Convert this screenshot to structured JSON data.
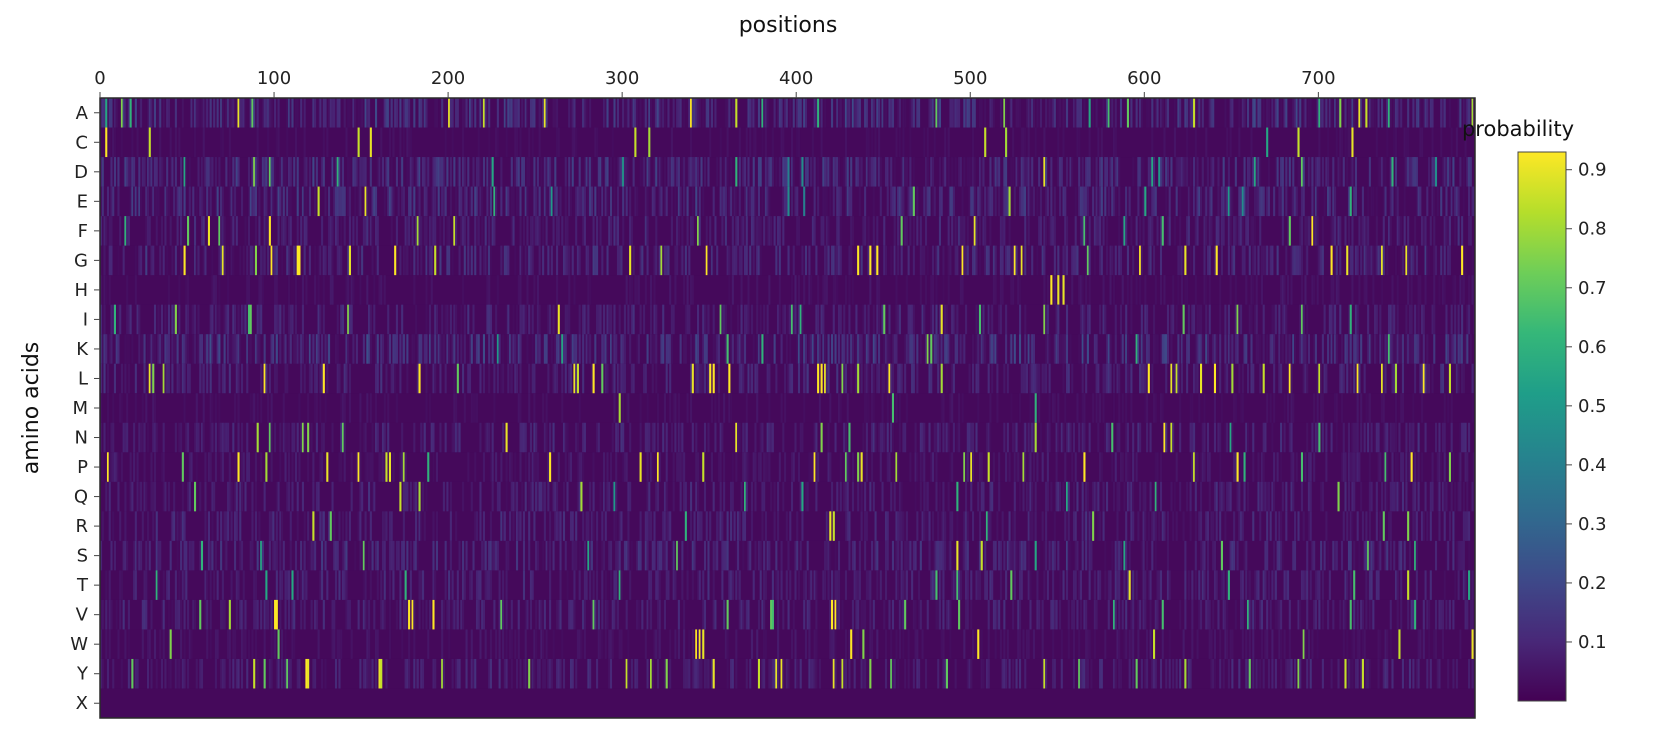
{
  "chart_data": {
    "type": "heatmap",
    "title": "",
    "xlabel": "positions",
    "ylabel": "amino acids",
    "x_axis_side": "top",
    "x_range": [
      0,
      790
    ],
    "x_ticks": [
      0,
      100,
      200,
      300,
      400,
      500,
      600,
      700
    ],
    "y_categories": [
      "A",
      "C",
      "D",
      "E",
      "F",
      "G",
      "H",
      "I",
      "K",
      "L",
      "M",
      "N",
      "P",
      "Q",
      "R",
      "S",
      "T",
      "V",
      "W",
      "Y",
      "X"
    ],
    "colorscale": "viridis",
    "colorbar": {
      "title": "probability",
      "range": [
        0,
        0.93
      ],
      "ticks": [
        0.1,
        0.2,
        0.3,
        0.4,
        0.5,
        0.6,
        0.7,
        0.8,
        0.9
      ]
    },
    "base_level": 0.02,
    "background_noise": 0.05,
    "row_noise_scale": {
      "A": 1.4,
      "C": 0.35,
      "D": 1.3,
      "E": 1.3,
      "F": 0.9,
      "G": 1.1,
      "H": 0.45,
      "I": 0.9,
      "K": 1.5,
      "L": 1.0,
      "M": 0.4,
      "N": 0.9,
      "P": 0.6,
      "Q": 0.9,
      "R": 0.9,
      "S": 1.1,
      "T": 0.9,
      "V": 0.9,
      "W": 0.5,
      "Y": 0.9,
      "X": 0
    },
    "high_values": {
      "A": [
        [
          3,
          0.55
        ],
        [
          12,
          0.75
        ],
        [
          17,
          0.6
        ],
        [
          79,
          0.9
        ],
        [
          87,
          0.7
        ],
        [
          200,
          0.9
        ],
        [
          220,
          0.85
        ],
        [
          255,
          0.9
        ],
        [
          339,
          0.95
        ],
        [
          365,
          0.85
        ],
        [
          380,
          0.6
        ],
        [
          412,
          0.6
        ],
        [
          480,
          0.7
        ],
        [
          519,
          0.75
        ],
        [
          568,
          0.55
        ],
        [
          579,
          0.65
        ],
        [
          590,
          0.7
        ],
        [
          628,
          0.85
        ],
        [
          700,
          0.6
        ],
        [
          712,
          0.75
        ],
        [
          723,
          0.9
        ],
        [
          727,
          0.85
        ],
        [
          740,
          0.6
        ],
        [
          788,
          0.8
        ]
      ],
      "C": [
        [
          3,
          0.95
        ],
        [
          28,
          0.85
        ],
        [
          148,
          0.85
        ],
        [
          155,
          0.9
        ],
        [
          307,
          0.85
        ],
        [
          315,
          0.8
        ],
        [
          508,
          0.85
        ],
        [
          520,
          0.8
        ],
        [
          670,
          0.55
        ],
        [
          688,
          0.85
        ],
        [
          719,
          0.9
        ]
      ],
      "D": [
        [
          48,
          0.55
        ],
        [
          88,
          0.75
        ],
        [
          97,
          0.7
        ],
        [
          136,
          0.6
        ],
        [
          225,
          0.55
        ],
        [
          300,
          0.5
        ],
        [
          365,
          0.6
        ],
        [
          395,
          0.4
        ],
        [
          403,
          0.45
        ],
        [
          542,
          0.9
        ],
        [
          604,
          0.55
        ],
        [
          608,
          0.5
        ],
        [
          663,
          0.55
        ],
        [
          690,
          0.7
        ],
        [
          742,
          0.6
        ],
        [
          767,
          0.45
        ]
      ],
      "E": [
        [
          125,
          0.85
        ],
        [
          152,
          0.9
        ],
        [
          226,
          0.6
        ],
        [
          259,
          0.5
        ],
        [
          395,
          0.45
        ],
        [
          404,
          0.4
        ],
        [
          467,
          0.7
        ],
        [
          522,
          0.8
        ],
        [
          600,
          0.55
        ],
        [
          648,
          0.5
        ],
        [
          656,
          0.45
        ],
        [
          718,
          0.6
        ]
      ],
      "F": [
        [
          14,
          0.6
        ],
        [
          50,
          0.7
        ],
        [
          62,
          0.9
        ],
        [
          68,
          0.7
        ],
        [
          97,
          0.95
        ],
        [
          182,
          0.8
        ],
        [
          203,
          0.85
        ],
        [
          343,
          0.75
        ],
        [
          460,
          0.7
        ],
        [
          502,
          0.9
        ],
        [
          565,
          0.65
        ],
        [
          588,
          0.55
        ],
        [
          610,
          0.65
        ],
        [
          683,
          0.7
        ],
        [
          696,
          0.95
        ]
      ],
      "G": [
        [
          48,
          0.95
        ],
        [
          70,
          0.9
        ],
        [
          89,
          0.75
        ],
        [
          98,
          0.95
        ],
        [
          113,
          0.95
        ],
        [
          114,
          0.95
        ],
        [
          143,
          0.9
        ],
        [
          169,
          0.95
        ],
        [
          192,
          0.85
        ],
        [
          304,
          0.9
        ],
        [
          322,
          0.8
        ],
        [
          348,
          0.95
        ],
        [
          435,
          0.95
        ],
        [
          442,
          0.95
        ],
        [
          446,
          0.95
        ],
        [
          495,
          0.95
        ],
        [
          525,
          0.95
        ],
        [
          529,
          0.9
        ],
        [
          567,
          0.7
        ],
        [
          597,
          0.95
        ],
        [
          623,
          0.9
        ],
        [
          641,
          0.95
        ],
        [
          707,
          0.95
        ],
        [
          716,
          0.9
        ],
        [
          736,
          0.9
        ],
        [
          750,
          0.9
        ],
        [
          782,
          0.95
        ]
      ],
      "H": [
        [
          546,
          0.95
        ],
        [
          550,
          0.9
        ],
        [
          553,
          0.9
        ]
      ],
      "I": [
        [
          8,
          0.6
        ],
        [
          43,
          0.75
        ],
        [
          85,
          0.65
        ],
        [
          86,
          0.7
        ],
        [
          142,
          0.75
        ],
        [
          263,
          0.9
        ],
        [
          356,
          0.7
        ],
        [
          397,
          0.65
        ],
        [
          402,
          0.6
        ],
        [
          450,
          0.7
        ],
        [
          483,
          0.9
        ],
        [
          505,
          0.65
        ],
        [
          542,
          0.75
        ],
        [
          622,
          0.7
        ],
        [
          653,
          0.75
        ],
        [
          690,
          0.7
        ],
        [
          718,
          0.6
        ]
      ],
      "K": [
        [
          228,
          0.5
        ],
        [
          265,
          0.55
        ],
        [
          360,
          0.65
        ],
        [
          380,
          0.6
        ],
        [
          475,
          0.75
        ],
        [
          477,
          0.7
        ],
        [
          595,
          0.6
        ],
        [
          740,
          0.65
        ]
      ],
      "L": [
        [
          28,
          0.9
        ],
        [
          30,
          0.75
        ],
        [
          36,
          0.8
        ],
        [
          94,
          0.95
        ],
        [
          128,
          0.95
        ],
        [
          183,
          0.95
        ],
        [
          205,
          0.7
        ],
        [
          272,
          0.9
        ],
        [
          274,
          0.85
        ],
        [
          283,
          0.95
        ],
        [
          288,
          0.7
        ],
        [
          340,
          0.9
        ],
        [
          350,
          0.95
        ],
        [
          352,
          0.95
        ],
        [
          361,
          0.95
        ],
        [
          412,
          0.95
        ],
        [
          414,
          0.95
        ],
        [
          416,
          0.9
        ],
        [
          426,
          0.75
        ],
        [
          435,
          0.8
        ],
        [
          453,
          0.95
        ],
        [
          483,
          0.8
        ],
        [
          602,
          0.95
        ],
        [
          615,
          0.9
        ],
        [
          618,
          0.85
        ],
        [
          632,
          0.9
        ],
        [
          640,
          0.95
        ],
        [
          650,
          0.8
        ],
        [
          668,
          0.85
        ],
        [
          683,
          0.95
        ],
        [
          700,
          0.85
        ],
        [
          722,
          0.95
        ],
        [
          736,
          0.9
        ],
        [
          744,
          0.8
        ],
        [
          760,
          0.95
        ],
        [
          775,
          0.85
        ]
      ],
      "M": [
        [
          298,
          0.8
        ],
        [
          455,
          0.65
        ],
        [
          537,
          0.6
        ]
      ],
      "N": [
        [
          90,
          0.8
        ],
        [
          97,
          0.7
        ],
        [
          116,
          0.75
        ],
        [
          119,
          0.75
        ],
        [
          139,
          0.7
        ],
        [
          233,
          0.9
        ],
        [
          365,
          0.9
        ],
        [
          414,
          0.75
        ],
        [
          430,
          0.65
        ],
        [
          537,
          0.8
        ],
        [
          581,
          0.65
        ],
        [
          611,
          0.95
        ],
        [
          615,
          0.85
        ],
        [
          649,
          0.55
        ],
        [
          700,
          0.65
        ]
      ],
      "P": [
        [
          4,
          0.95
        ],
        [
          47,
          0.7
        ],
        [
          79,
          0.95
        ],
        [
          95,
          0.8
        ],
        [
          130,
          0.9
        ],
        [
          148,
          0.95
        ],
        [
          164,
          0.85
        ],
        [
          166,
          0.9
        ],
        [
          174,
          0.8
        ],
        [
          188,
          0.6
        ],
        [
          258,
          0.95
        ],
        [
          310,
          0.9
        ],
        [
          320,
          0.95
        ],
        [
          346,
          0.85
        ],
        [
          410,
          0.95
        ],
        [
          428,
          0.7
        ],
        [
          435,
          0.75
        ],
        [
          437,
          0.9
        ],
        [
          457,
          0.8
        ],
        [
          496,
          0.75
        ],
        [
          500,
          0.9
        ],
        [
          510,
          0.85
        ],
        [
          530,
          0.8
        ],
        [
          565,
          0.95
        ],
        [
          628,
          0.85
        ],
        [
          653,
          0.95
        ],
        [
          657,
          0.6
        ],
        [
          690,
          0.65
        ],
        [
          738,
          0.65
        ],
        [
          753,
          0.95
        ],
        [
          775,
          0.75
        ]
      ],
      "Q": [
        [
          54,
          0.7
        ],
        [
          172,
          0.85
        ],
        [
          183,
          0.8
        ],
        [
          276,
          0.8
        ],
        [
          295,
          0.5
        ],
        [
          370,
          0.6
        ],
        [
          403,
          0.55
        ],
        [
          492,
          0.6
        ],
        [
          555,
          0.55
        ],
        [
          606,
          0.6
        ],
        [
          711,
          0.75
        ]
      ],
      "R": [
        [
          122,
          0.85
        ],
        [
          132,
          0.7
        ],
        [
          336,
          0.6
        ],
        [
          419,
          0.9
        ],
        [
          421,
          0.85
        ],
        [
          509,
          0.6
        ],
        [
          570,
          0.75
        ],
        [
          737,
          0.7
        ],
        [
          751,
          0.75
        ]
      ],
      "S": [
        [
          58,
          0.6
        ],
        [
          92,
          0.55
        ],
        [
          151,
          0.7
        ],
        [
          280,
          0.55
        ],
        [
          331,
          0.7
        ],
        [
          492,
          0.9
        ],
        [
          506,
          0.85
        ],
        [
          537,
          0.55
        ],
        [
          588,
          0.55
        ],
        [
          644,
          0.7
        ],
        [
          728,
          0.7
        ],
        [
          755,
          0.6
        ]
      ],
      "T": [
        [
          32,
          0.6
        ],
        [
          95,
          0.55
        ],
        [
          110,
          0.55
        ],
        [
          175,
          0.6
        ],
        [
          298,
          0.6
        ],
        [
          480,
          0.65
        ],
        [
          492,
          0.65
        ],
        [
          523,
          0.7
        ],
        [
          591,
          0.9
        ],
        [
          648,
          0.6
        ],
        [
          720,
          0.65
        ],
        [
          751,
          0.85
        ],
        [
          786,
          0.55
        ]
      ],
      "V": [
        [
          57,
          0.7
        ],
        [
          74,
          0.8
        ],
        [
          100,
          0.95
        ],
        [
          101,
          0.95
        ],
        [
          177,
          0.95
        ],
        [
          179,
          0.95
        ],
        [
          191,
          0.95
        ],
        [
          230,
          0.7
        ],
        [
          283,
          0.7
        ],
        [
          360,
          0.7
        ],
        [
          385,
          0.7
        ],
        [
          386,
          0.65
        ],
        [
          420,
          0.95
        ],
        [
          422,
          0.95
        ],
        [
          462,
          0.7
        ],
        [
          493,
          0.7
        ],
        [
          582,
          0.6
        ],
        [
          610,
          0.65
        ],
        [
          659,
          0.6
        ],
        [
          718,
          0.65
        ],
        [
          755,
          0.6
        ]
      ],
      "W": [
        [
          40,
          0.75
        ],
        [
          102,
          0.7
        ],
        [
          342,
          0.95
        ],
        [
          344,
          0.95
        ],
        [
          346,
          0.9
        ],
        [
          431,
          0.95
        ],
        [
          438,
          0.75
        ],
        [
          504,
          0.95
        ],
        [
          605,
          0.85
        ],
        [
          691,
          0.75
        ],
        [
          746,
          0.85
        ],
        [
          788,
          0.9
        ]
      ],
      "Y": [
        [
          18,
          0.7
        ],
        [
          88,
          0.85
        ],
        [
          94,
          0.7
        ],
        [
          107,
          0.7
        ],
        [
          118,
          0.95
        ],
        [
          119,
          0.9
        ],
        [
          160,
          0.9
        ],
        [
          161,
          0.85
        ],
        [
          196,
          0.8
        ],
        [
          246,
          0.75
        ],
        [
          302,
          0.85
        ],
        [
          316,
          0.8
        ],
        [
          325,
          0.75
        ],
        [
          352,
          0.9
        ],
        [
          378,
          0.85
        ],
        [
          388,
          0.9
        ],
        [
          391,
          0.9
        ],
        [
          421,
          0.9
        ],
        [
          426,
          0.85
        ],
        [
          442,
          0.75
        ],
        [
          454,
          0.7
        ],
        [
          486,
          0.7
        ],
        [
          542,
          0.85
        ],
        [
          562,
          0.7
        ],
        [
          595,
          0.7
        ],
        [
          623,
          0.8
        ],
        [
          660,
          0.7
        ],
        [
          688,
          0.75
        ],
        [
          715,
          0.85
        ],
        [
          725,
          0.85
        ]
      ],
      "X": []
    }
  }
}
